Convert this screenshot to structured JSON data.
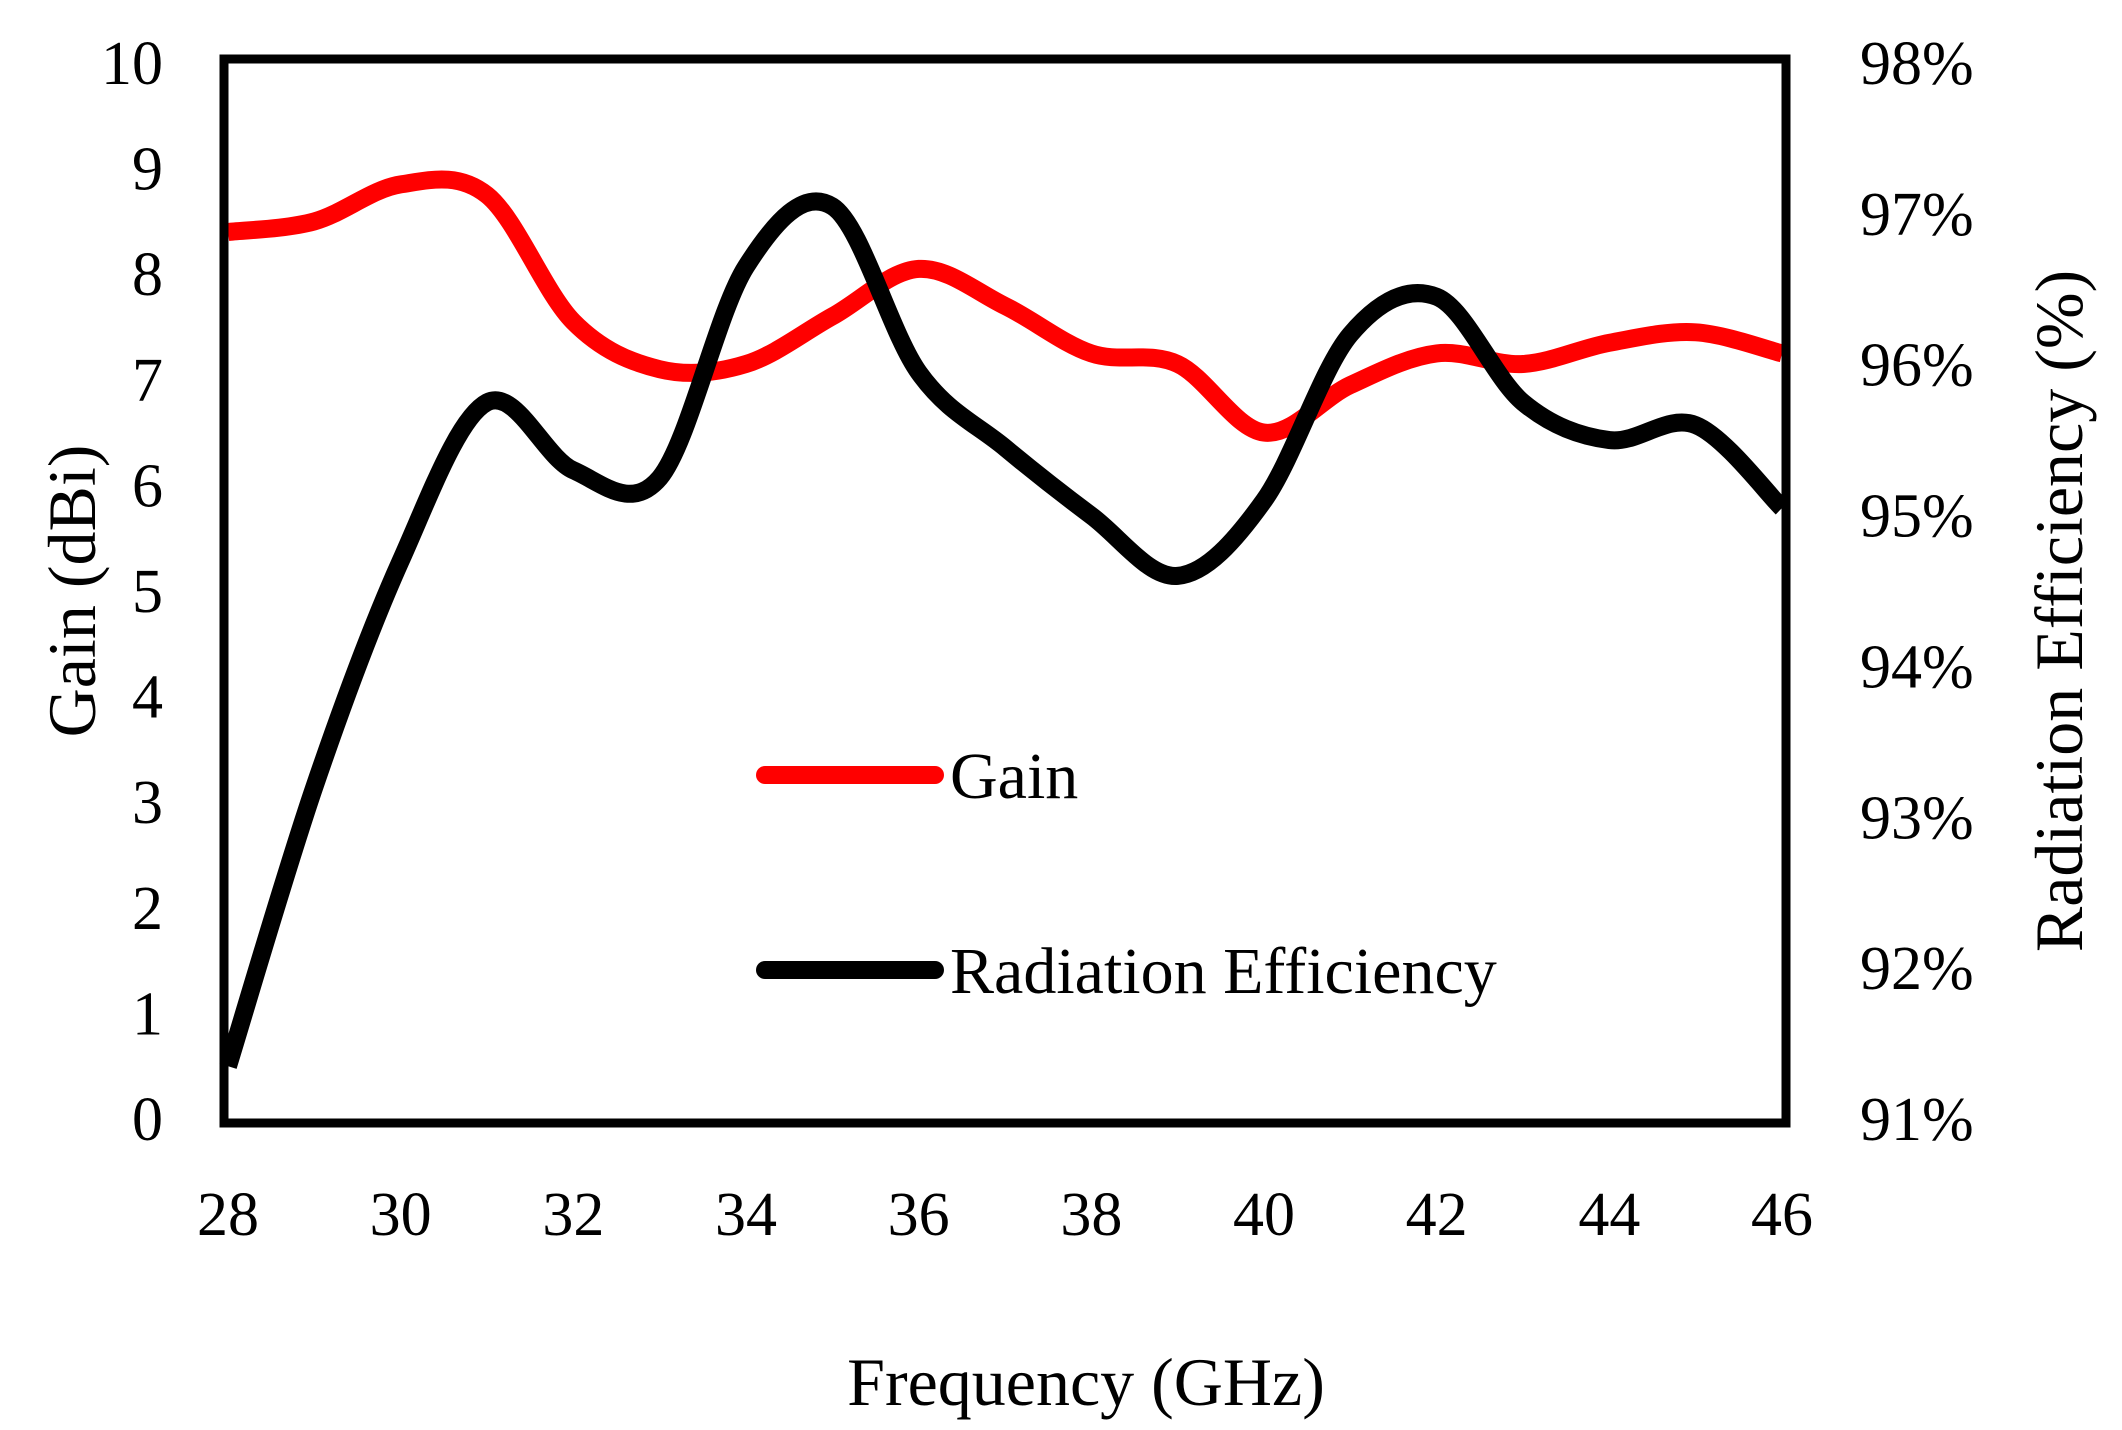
{
  "chart_data": {
    "type": "line",
    "title": "",
    "xlabel": "Frequency (GHz)",
    "ylabel": "Gain (dBi)",
    "y2label": "Radiation Efficiency  (%)",
    "xlim": [
      28,
      46
    ],
    "ylim": [
      0,
      10
    ],
    "y2lim": [
      91,
      98
    ],
    "x_ticks": [
      "28",
      "30",
      "32",
      "34",
      "36",
      "38",
      "40",
      "42",
      "44",
      "46"
    ],
    "y_ticks": [
      "0",
      "1",
      "2",
      "3",
      "4",
      "5",
      "6",
      "7",
      "8",
      "9",
      "10"
    ],
    "y2_ticks": [
      "91%",
      "92%",
      "93%",
      "94%",
      "95%",
      "96%",
      "97%",
      "98%"
    ],
    "grid": false,
    "legend_position": "center-bottom",
    "series": [
      {
        "name": "Gain",
        "axis": "left",
        "color": "#ff0000",
        "x": [
          28,
          29,
          30,
          31,
          32,
          33,
          34,
          35,
          36,
          37,
          38,
          39,
          40,
          41,
          42,
          43,
          44,
          45,
          46
        ],
        "values": [
          8.4,
          8.5,
          8.85,
          8.75,
          7.55,
          7.1,
          7.15,
          7.6,
          8.05,
          7.7,
          7.25,
          7.15,
          6.5,
          6.95,
          7.25,
          7.15,
          7.35,
          7.45,
          7.25
        ]
      },
      {
        "name": "Radiation Efficiency",
        "axis": "right",
        "color": "#000000",
        "x": [
          28,
          29,
          30,
          31,
          32,
          33,
          34,
          35,
          36,
          37,
          38,
          39,
          40,
          41,
          42,
          43,
          44,
          45,
          46
        ],
        "values": [
          91.35,
          93.2,
          94.7,
          95.75,
          95.3,
          95.25,
          96.65,
          97.05,
          95.95,
          95.45,
          95.0,
          94.6,
          95.1,
          96.2,
          96.45,
          95.75,
          95.5,
          95.6,
          95.05
        ]
      }
    ]
  }
}
